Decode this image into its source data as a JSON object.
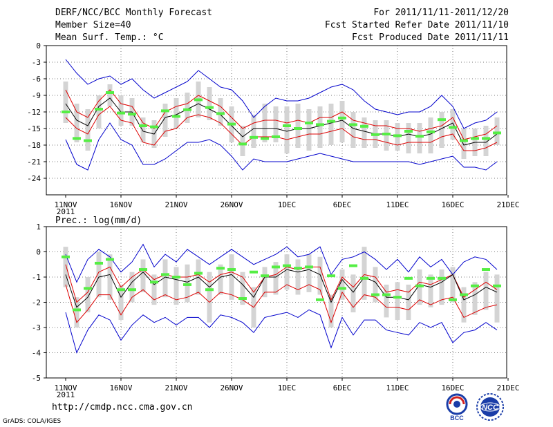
{
  "header": {
    "title": "DERF/NCC/BCC Monthly Forecast",
    "member_size": "Member Size=40",
    "variable": "Mean Surf. Temp.: °C",
    "period": "For 2011/11/11-2011/12/20",
    "started": "Fcst Started Refer Date 2011/11/10",
    "produced": "Fcst Produced Date 2011/11/11"
  },
  "footer": {
    "url": "http://cmdp.ncc.cma.gov.cn",
    "grads": "GrADS: COLA/IGES",
    "bcc_logo_text": "BCC",
    "ncc_logo_text": "NCC"
  },
  "colors": {
    "ensemble_mean": "#000000",
    "spread": "#dd0000",
    "extremes": "#0000cc",
    "box": "#d4d4d4",
    "observed": "#55ee44"
  },
  "chart_data": [
    {
      "type": "line",
      "title": "Mean Surf. Temp.: °C",
      "ylim": [
        -27,
        0
      ],
      "yticks": [
        0,
        -3,
        -6,
        -9,
        -12,
        -15,
        -18,
        -21,
        -24
      ],
      "ytick_labels": [
        "0",
        "-3",
        "-6",
        "-9",
        "-12",
        "-15",
        "-18",
        "-21",
        "-24"
      ],
      "xlim": [
        0,
        40
      ],
      "xticks": [
        0,
        5,
        10,
        15,
        20,
        25,
        30,
        35,
        40
      ],
      "xtick_labels": [
        "11NOV",
        "16NOV",
        "21NOV",
        "26NOV",
        "1DEC",
        "6DEC",
        "11DEC",
        "16DEC",
        "21DEC"
      ],
      "xtick_sublabel": "2011",
      "x": [
        0,
        1,
        2,
        3,
        4,
        5,
        6,
        7,
        8,
        9,
        10,
        11,
        12,
        13,
        14,
        15,
        16,
        17,
        18,
        19,
        20,
        21,
        22,
        23,
        24,
        25,
        26,
        27,
        28,
        29,
        30,
        31,
        32,
        33,
        34,
        35,
        36,
        37,
        38,
        39
      ],
      "series": [
        {
          "name": "max",
          "values": [
            -2.5,
            -5,
            -7,
            -6,
            -5.5,
            -7,
            -6,
            -8,
            -9.5,
            -8.5,
            -7.5,
            -6.5,
            -4.5,
            -6,
            -7.5,
            -8,
            -10,
            -13,
            -11,
            -9.5,
            -10,
            -10,
            -9.5,
            -8.5,
            -7.5,
            -7,
            -8,
            -10,
            -11.5,
            -12,
            -12.5,
            -12,
            -12,
            -11,
            -9,
            -11,
            -15,
            -14,
            -13.5,
            -12
          ]
        },
        {
          "name": "upper",
          "values": [
            -8,
            -12,
            -13,
            -10,
            -8,
            -10.5,
            -11,
            -14,
            -15,
            -12,
            -11,
            -10.5,
            -9,
            -10,
            -11,
            -13,
            -15,
            -14,
            -13.5,
            -13.5,
            -14,
            -13.5,
            -14,
            -13,
            -13,
            -12,
            -13.5,
            -14,
            -14.5,
            -14.5,
            -15,
            -15,
            -15.5,
            -15,
            -14.5,
            -13,
            -17,
            -16.5,
            -16,
            -14.5
          ]
        },
        {
          "name": "mean",
          "values": [
            -10.5,
            -13.5,
            -14.5,
            -11,
            -9.5,
            -12,
            -12,
            -15.5,
            -16,
            -13,
            -12.5,
            -11.5,
            -10.5,
            -11.5,
            -12.5,
            -14.5,
            -16.5,
            -15,
            -15,
            -15,
            -15.5,
            -15,
            -15,
            -14.5,
            -14,
            -13.5,
            -15,
            -15.5,
            -16,
            -16,
            -16.5,
            -16,
            -16.5,
            -16,
            -15,
            -14,
            -18,
            -17.5,
            -17.5,
            -16
          ]
        },
        {
          "name": "lower",
          "values": [
            -13,
            -15,
            -16,
            -12.5,
            -11,
            -13.5,
            -14,
            -17.5,
            -18,
            -15.5,
            -15,
            -13,
            -12.5,
            -13,
            -14,
            -16,
            -18,
            -16.5,
            -16.5,
            -16.5,
            -17,
            -16.5,
            -16,
            -16,
            -15.5,
            -15,
            -16.5,
            -17,
            -17,
            -17.5,
            -18,
            -17.5,
            -17.5,
            -17.5,
            -16.5,
            -16,
            -19,
            -19,
            -18.5,
            -17.5
          ]
        },
        {
          "name": "min",
          "values": [
            -17,
            -21.5,
            -22.5,
            -17,
            -14,
            -17,
            -18,
            -21.5,
            -21.5,
            -20.5,
            -19,
            -17.5,
            -17.5,
            -17,
            -18,
            -20,
            -22.5,
            -20.5,
            -21,
            -21,
            -21,
            -20.5,
            -20,
            -19.5,
            -20,
            -20.5,
            -21,
            -21,
            -21,
            -21,
            -21,
            -21,
            -21.5,
            -21,
            -20.5,
            -20,
            -22,
            -22,
            -22.5,
            -21
          ]
        }
      ],
      "boxes_low": [
        -14,
        -17.5,
        -19,
        -15,
        -11,
        -14.5,
        -14.5,
        -17.5,
        -18.5,
        -16.5,
        -15,
        -14,
        -13,
        -13.5,
        -14.5,
        -17.5,
        -20,
        -18.5,
        -17.5,
        -17.5,
        -19.5,
        -18.5,
        -19,
        -18.5,
        -18,
        -17.5,
        -18.5,
        -18.5,
        -18.5,
        -19,
        -19,
        -19.5,
        -19.5,
        -19.5,
        -18.5,
        -17,
        -20.5,
        -20,
        -20,
        -18
      ],
      "boxes_high": [
        -6.5,
        -10.5,
        -11.5,
        -9,
        -7,
        -9,
        -9.5,
        -13,
        -13.5,
        -10.5,
        -9.5,
        -8.5,
        -6.5,
        -7.5,
        -9.5,
        -11,
        -14.5,
        -12.5,
        -10.5,
        -11,
        -11,
        -10.5,
        -11.5,
        -11,
        -10.5,
        -10,
        -12,
        -13,
        -13.5,
        -13.5,
        -14,
        -14,
        -14,
        -13,
        -12,
        -11.5,
        -15,
        -15,
        -14.5,
        -13
      ],
      "observed": [
        -12,
        -16.8,
        -17.2,
        -11.5,
        -8.5,
        -12.2,
        -12.4,
        -14.5,
        -14.7,
        -11.8,
        -12.8,
        -11.6,
        -9.8,
        -11.2,
        -12.3,
        -14.2,
        -17.8,
        -16.6,
        -16.8,
        -16.5,
        -14.5,
        -15,
        -14,
        -14.3,
        -13.7,
        -13.1,
        -14.3,
        -14.6,
        -16.1,
        -16,
        -16.3,
        -15.5,
        -16.4,
        -15.6,
        -13.4,
        -14.8,
        -17.2,
        -16.8,
        -16.8,
        -15.8
      ]
    },
    {
      "type": "line",
      "title": "Prec.: log(mm/d)",
      "ylim": [
        -5,
        1
      ],
      "yticks": [
        1,
        0,
        -1,
        -2,
        -3,
        -4,
        -5
      ],
      "ytick_labels": [
        "1",
        "0",
        "-1",
        "-2",
        "-3",
        "-4",
        "-5"
      ],
      "xlim": [
        0,
        40
      ],
      "xticks": [
        0,
        5,
        10,
        15,
        20,
        25,
        30,
        35,
        40
      ],
      "xtick_labels": [
        "11NOV",
        "16NOV",
        "21NOV",
        "26NOV",
        "1DEC",
        "6DEC",
        "11DEC",
        "16DEC",
        "21DEC"
      ],
      "xtick_sublabel": "2011",
      "x": [
        0,
        1,
        2,
        3,
        4,
        5,
        6,
        7,
        8,
        9,
        10,
        11,
        12,
        13,
        14,
        15,
        16,
        17,
        18,
        19,
        20,
        21,
        22,
        23,
        24,
        25,
        26,
        27,
        28,
        29,
        30,
        31,
        32,
        33,
        34,
        35,
        36,
        37,
        38,
        39
      ],
      "series": [
        {
          "name": "max",
          "values": [
            -0.1,
            -1.2,
            -0.3,
            0.1,
            -0.2,
            -0.8,
            -0.4,
            0.3,
            -0.6,
            -0.1,
            -0.4,
            0.1,
            -0.2,
            -0.5,
            -0.2,
            0.1,
            -0.2,
            -0.5,
            -0.3,
            -0.1,
            0.2,
            -0.2,
            -0.1,
            0.2,
            -0.9,
            -0.3,
            -0.2,
            0.0,
            -0.3,
            -0.7,
            -0.3,
            -0.8,
            -0.2,
            -0.6,
            -0.3,
            -0.9,
            -0.4,
            -0.2,
            -0.3,
            -0.7
          ]
        },
        {
          "name": "upper",
          "values": [
            -0.5,
            -2.0,
            -1.6,
            -0.8,
            -0.6,
            -1.4,
            -1.0,
            -0.7,
            -1.1,
            -0.9,
            -1.0,
            -1.0,
            -0.9,
            -1.2,
            -0.9,
            -0.8,
            -1.0,
            -1.6,
            -1.0,
            -0.9,
            -0.6,
            -0.7,
            -0.6,
            -0.6,
            -1.9,
            -1.0,
            -1.4,
            -0.9,
            -1.0,
            -1.6,
            -1.5,
            -1.6,
            -1.2,
            -1.3,
            -1.1,
            -0.9,
            -1.8,
            -1.5,
            -1.2,
            -1.5
          ]
        },
        {
          "name": "mean",
          "values": [
            -0.9,
            -2.2,
            -1.8,
            -1.0,
            -0.9,
            -1.8,
            -1.2,
            -0.8,
            -1.3,
            -1.0,
            -1.1,
            -1.2,
            -1.0,
            -1.4,
            -1.0,
            -0.9,
            -1.3,
            -1.8,
            -1.0,
            -1.0,
            -0.7,
            -0.8,
            -0.7,
            -0.9,
            -2.0,
            -1.1,
            -1.6,
            -1.0,
            -1.2,
            -1.8,
            -1.8,
            -1.9,
            -1.3,
            -1.4,
            -1.2,
            -0.9,
            -1.9,
            -1.7,
            -1.4,
            -1.6
          ]
        },
        {
          "name": "lower",
          "values": [
            -1.3,
            -2.8,
            -2.3,
            -1.7,
            -1.7,
            -2.5,
            -1.8,
            -1.5,
            -1.9,
            -1.7,
            -1.9,
            -1.8,
            -1.6,
            -2.0,
            -1.6,
            -1.7,
            -1.9,
            -2.2,
            -1.6,
            -1.6,
            -1.3,
            -1.5,
            -1.3,
            -1.5,
            -2.8,
            -1.6,
            -2.2,
            -1.7,
            -1.8,
            -2.2,
            -2.2,
            -2.3,
            -1.9,
            -2.1,
            -1.9,
            -1.8,
            -2.6,
            -2.4,
            -2.2,
            -2.1
          ]
        },
        {
          "name": "min",
          "values": [
            -2.4,
            -4.0,
            -3.1,
            -2.5,
            -2.7,
            -3.5,
            -2.9,
            -2.5,
            -2.8,
            -2.6,
            -2.9,
            -2.6,
            -2.6,
            -3.0,
            -2.5,
            -2.6,
            -2.8,
            -3.2,
            -2.6,
            -2.5,
            -2.4,
            -2.6,
            -2.3,
            -2.5,
            -3.8,
            -2.6,
            -3.3,
            -2.7,
            -2.7,
            -3.1,
            -3.2,
            -3.3,
            -2.8,
            -3.0,
            -2.8,
            -3.6,
            -3.2,
            -3.1,
            -2.8,
            -3.1
          ]
        },
        {
          "name": "ensemble",
          "values": [
            -0.9,
            -2.2,
            -1.8,
            -1.0,
            -0.9,
            -1.8,
            -1.2,
            -0.8,
            -1.3,
            -1.0,
            -1.1,
            -1.2,
            -1.0,
            -1.4,
            -1.0,
            -0.9,
            -1.3,
            -1.8,
            -1.0,
            -1.0,
            -0.7,
            -0.8,
            -0.7,
            -0.9,
            -2.0,
            -1.1,
            -1.6,
            -1.0,
            -1.2,
            -1.8,
            -1.8,
            -1.9,
            -1.3,
            -1.4,
            -1.2,
            -0.9,
            -1.9,
            -1.7,
            -1.4,
            -1.6
          ]
        }
      ],
      "boxes_low": [
        -1.4,
        -3.0,
        -2.4,
        -1.8,
        -1.9,
        -2.7,
        -2.0,
        -1.6,
        -2.1,
        -1.8,
        -2.1,
        -2.0,
        -1.7,
        -2.8,
        -1.7,
        -1.9,
        -2.1,
        -3.0,
        -1.8,
        -1.7,
        -1.5,
        -1.7,
        -1.6,
        -1.7,
        -3.0,
        -1.9,
        -2.4,
        -1.9,
        -2.0,
        -2.6,
        -2.7,
        -2.7,
        -2.1,
        -2.2,
        -2.1,
        -2.0,
        -2.8,
        -2.5,
        -2.3,
        -2.8
      ],
      "boxes_high": [
        0.2,
        -1.8,
        -1.0,
        0.0,
        -0.1,
        -1.3,
        -0.8,
        -0.3,
        -0.9,
        -0.3,
        -0.6,
        -0.5,
        -0.3,
        -0.8,
        -0.5,
        -0.1,
        -0.8,
        -1.4,
        -0.6,
        -0.4,
        -0.1,
        -0.3,
        -0.1,
        -0.2,
        -1.7,
        -0.7,
        -0.9,
        0.2,
        -0.6,
        -1.3,
        -1.2,
        -1.3,
        -0.7,
        -0.9,
        -0.7,
        -0.6,
        -1.4,
        -1.2,
        -0.8,
        -0.9
      ]
    }
  ],
  "observed_prec": [
    -0.2,
    -2.3,
    -1.45,
    -0.45,
    -0.3,
    -1.5,
    -1.5,
    -0.7,
    -1.2,
    -0.9,
    -1.0,
    -1.3,
    -0.85,
    -1.5,
    -0.65,
    -0.7,
    -1.85,
    -0.8,
    -0.95,
    -0.6,
    -0.55,
    -0.65,
    -0.6,
    -1.9,
    -0.95,
    -1.45,
    -0.55,
    -1.05,
    -1.7,
    -1.7,
    -1.8,
    -1.05,
    -1.35,
    -1.05,
    -1.05,
    -1.9,
    -1.7,
    -1.35,
    -0.7,
    -1.35
  ],
  "panel2_label": "Prec.: log(mm/d)"
}
